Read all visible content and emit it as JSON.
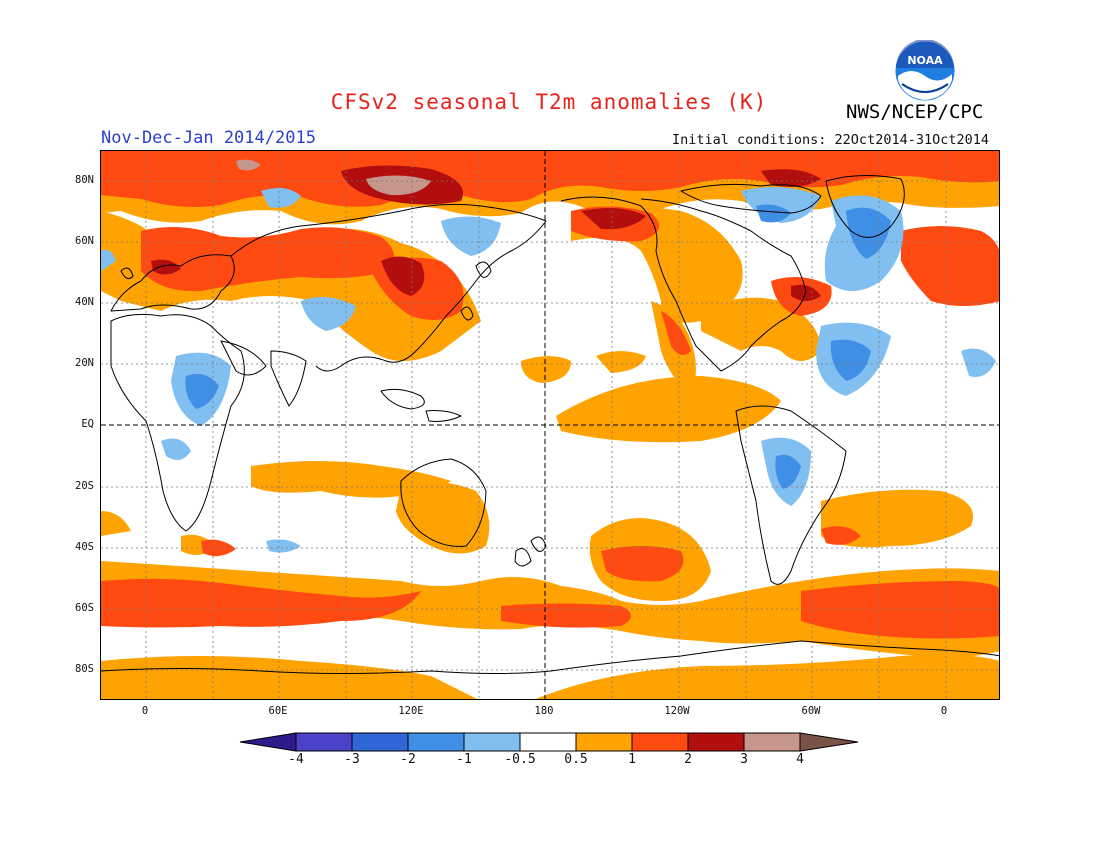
{
  "header": {
    "title": "CFSv2 seasonal T2m anomalies (K)",
    "agency": "NWS/NCEP/CPC",
    "logo_text": "NOAA",
    "season": "Nov-Dec-Jan 2014/2015",
    "initial_conditions": "Initial conditions: 22Oct2014-31Oct2014"
  },
  "map": {
    "projection": "cylindrical equidistant, 0E centered (longitude -20 to 370)",
    "lat_labels": [
      "80N",
      "60N",
      "40N",
      "20N",
      "EQ",
      "20S",
      "40S",
      "60S",
      "80S"
    ],
    "lon_labels": [
      "0",
      "60E",
      "120E",
      "180",
      "120W",
      "60W",
      "0"
    ],
    "reference_lines": [
      "Equator",
      "180"
    ]
  },
  "colorbar": {
    "labels": [
      "-4",
      "-3",
      "-2",
      "-1",
      "-0.5",
      "0.5",
      "1",
      "2",
      "3",
      "4"
    ],
    "colors": [
      "#2e1a8a",
      "#4a43c8",
      "#2f66d8",
      "#3f8fe6",
      "#82bff1",
      "#ffffff",
      "#fea302",
      "#ff4a12",
      "#b30e0e",
      "#c7978d",
      "#7b5247"
    ]
  }
}
